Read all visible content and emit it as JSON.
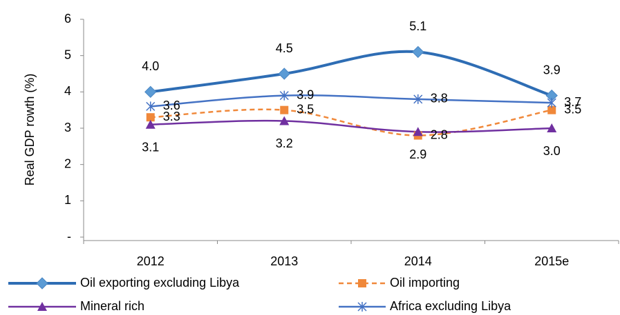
{
  "chart_data": {
    "type": "line",
    "y_label": "Real GDP rowth (%)",
    "categories": [
      "2012",
      "2013",
      "2014",
      "2015e"
    ],
    "ylim": [
      0,
      6
    ],
    "yticks": [
      {
        "value": 0,
        "label": "-"
      },
      1,
      2,
      3,
      4,
      5,
      6
    ],
    "series": [
      {
        "name": "Oil exporting excluding Libya",
        "color": "#2e6db4",
        "values": [
          4.0,
          4.5,
          5.1,
          3.9
        ],
        "value_labels": [
          "4.0",
          "4.5",
          "5.1",
          "3.9"
        ]
      },
      {
        "name": "Oil importing",
        "color": "#f0883a",
        "values": [
          3.3,
          3.5,
          2.8,
          3.5
        ],
        "value_labels": [
          "3.3",
          "3.5",
          "2.8",
          "3.5"
        ]
      },
      {
        "name": "Mineral rich",
        "color": "#7030a0",
        "values": [
          3.1,
          3.2,
          2.9,
          3.0
        ],
        "value_labels": [
          "3.1",
          "3.2",
          "2.9",
          "3.0"
        ]
      },
      {
        "name": "Africa excluding Libya",
        "color": "#4472c4",
        "values": [
          3.6,
          3.9,
          3.8,
          3.7
        ],
        "value_labels": [
          "3.6",
          "3.9",
          "3.8",
          "3.7"
        ]
      }
    ]
  }
}
